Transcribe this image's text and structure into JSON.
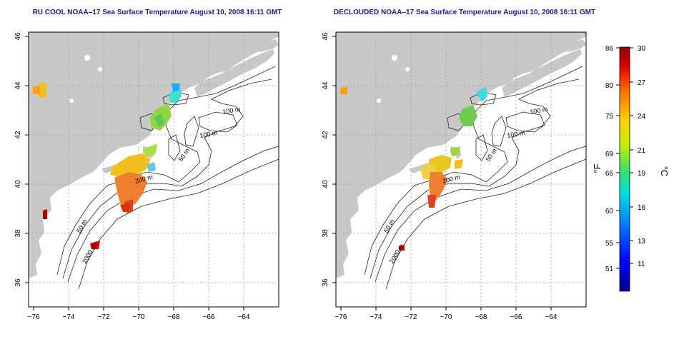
{
  "panels": [
    {
      "title": "RU COOL NOAA–17 Sea Surface Temperature August 10, 2008 16:11 GMT",
      "x_ticks": [
        "−76",
        "−74",
        "−72",
        "−70",
        "−68",
        "−66",
        "−64"
      ],
      "y_ticks": [
        "36",
        "38",
        "40",
        "42",
        "44",
        "46"
      ],
      "contour_labels": [
        "100 m",
        "100 m",
        "50 m",
        "200 m",
        "50 m",
        "2000 m"
      ]
    },
    {
      "title": "DECLOUDED NOAA–17 Sea Surface Temperature August 10, 2008 16:11 GMT",
      "x_ticks": [
        "−76",
        "−74",
        "−72",
        "−70",
        "−68",
        "−66",
        "−64"
      ],
      "y_ticks": [
        "36",
        "38",
        "40",
        "42",
        "44",
        "46"
      ],
      "contour_labels": [
        "100 m",
        "100 m",
        "50 m",
        "200 m",
        "50 m",
        "2000 m"
      ]
    }
  ],
  "colorbar": {
    "fahrenheit_unit": "°F",
    "celsius_unit": "°C",
    "fahrenheit_ticks": [
      "86",
      "80",
      "75",
      "69",
      "66",
      "60",
      "55",
      "51"
    ],
    "celsius_ticks": [
      "30",
      "27",
      "24",
      "21",
      "19",
      "16",
      "13",
      "11"
    ]
  },
  "colors": {
    "land": "#c8c8c8",
    "title": "#1a1aa6",
    "contour": "#222222"
  }
}
